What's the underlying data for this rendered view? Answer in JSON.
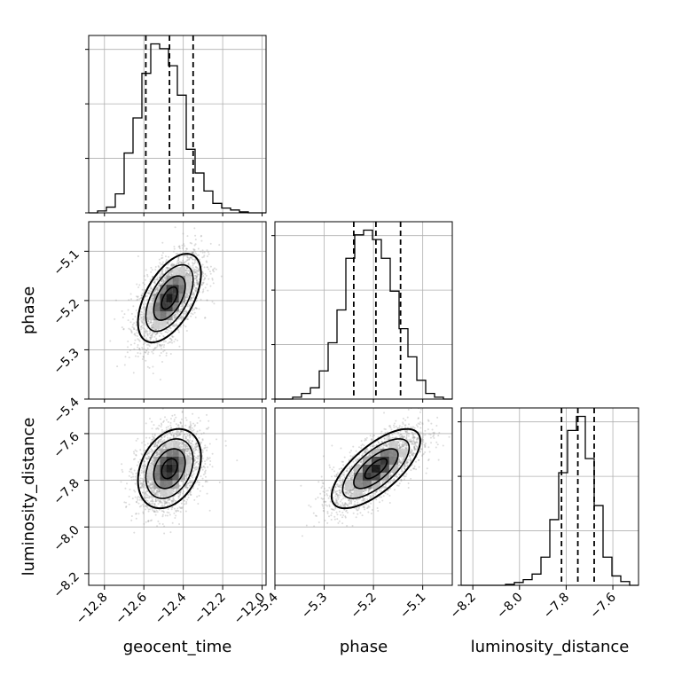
{
  "chart_data": {
    "type": "corner",
    "parameters": [
      "geocent_time",
      "phase",
      "luminosity_distance"
    ],
    "ranges": {
      "geocent_time": [
        -12.88,
        -11.98
      ],
      "phase": [
        -5.4,
        -5.04
      ],
      "luminosity_distance": [
        -8.25,
        -7.49
      ]
    },
    "ticks": {
      "geocent_time": [
        -12.8,
        -12.6,
        -12.4,
        -12.2,
        -12.0
      ],
      "phase": [
        -5.4,
        -5.3,
        -5.2,
        -5.1
      ],
      "luminosity_distance": [
        -8.2,
        -8.0,
        -7.8,
        -7.6
      ]
    },
    "tick_labels": {
      "geocent_time": [
        "−12.8",
        "−12.6",
        "−12.4",
        "−12.2",
        "−12.0"
      ],
      "phase": [
        "−5.4",
        "−5.3",
        "−5.2",
        "−5.1"
      ],
      "luminosity_distance": [
        "−8.2",
        "−8.0",
        "−7.8",
        "−7.6"
      ]
    },
    "quantiles": {
      "geocent_time": [
        -12.59,
        -12.47,
        -12.35
      ],
      "phase": [
        -5.24,
        -5.195,
        -5.145
      ],
      "luminosity_distance": [
        -7.82,
        -7.75,
        -7.68
      ]
    },
    "histograms": {
      "geocent_time": {
        "edges": [
          -12.88,
          -12.835,
          -12.79,
          -12.745,
          -12.7,
          -12.655,
          -12.61,
          -12.565,
          -12.52,
          -12.475,
          -12.43,
          -12.385,
          -12.34,
          -12.295,
          -12.25,
          -12.205,
          -12.16,
          -12.115,
          -12.07,
          -12.025,
          -11.98
        ],
        "counts": [
          0,
          2,
          6,
          20,
          63,
          100,
          147,
          178,
          173,
          155,
          124,
          67,
          42,
          23,
          10,
          5,
          3,
          1,
          0,
          0
        ]
      },
      "phase": {
        "edges": [
          -5.4,
          -5.382,
          -5.364,
          -5.346,
          -5.328,
          -5.31,
          -5.292,
          -5.274,
          -5.256,
          -5.238,
          -5.22,
          -5.202,
          -5.184,
          -5.166,
          -5.148,
          -5.13,
          -5.112,
          -5.094,
          -5.076,
          -5.058,
          -5.04
        ],
        "counts": [
          0,
          0,
          2,
          6,
          12,
          30,
          60,
          95,
          150,
          175,
          180,
          170,
          150,
          115,
          75,
          45,
          20,
          6,
          2,
          0
        ]
      },
      "luminosity_distance": {
        "edges": [
          -8.25,
          -8.212,
          -8.174,
          -8.136,
          -8.098,
          -8.06,
          -8.022,
          -7.984,
          -7.946,
          -7.908,
          -7.87,
          -7.832,
          -7.794,
          -7.756,
          -7.718,
          -7.68,
          -7.642,
          -7.604,
          -7.566,
          -7.528,
          -7.49
        ],
        "counts": [
          0,
          0,
          0,
          0,
          0,
          1,
          3,
          6,
          12,
          30,
          70,
          120,
          165,
          180,
          135,
          85,
          30,
          10,
          4,
          0
        ]
      }
    },
    "correlations": {
      "phase|geocent_time": 0.55,
      "luminosity_distance|geocent_time": 0.3,
      "luminosity_distance|phase": 0.7
    },
    "sigmas": {
      "geocent_time": 0.08,
      "phase": 0.045,
      "luminosity_distance": 0.085
    },
    "centers": {
      "geocent_time": -12.47,
      "phase": -5.195,
      "luminosity_distance": -7.75
    },
    "grid": true,
    "colors": {
      "line": "#000000",
      "grid": "#b0b0b0",
      "scatter": "#9a9a9a"
    }
  }
}
